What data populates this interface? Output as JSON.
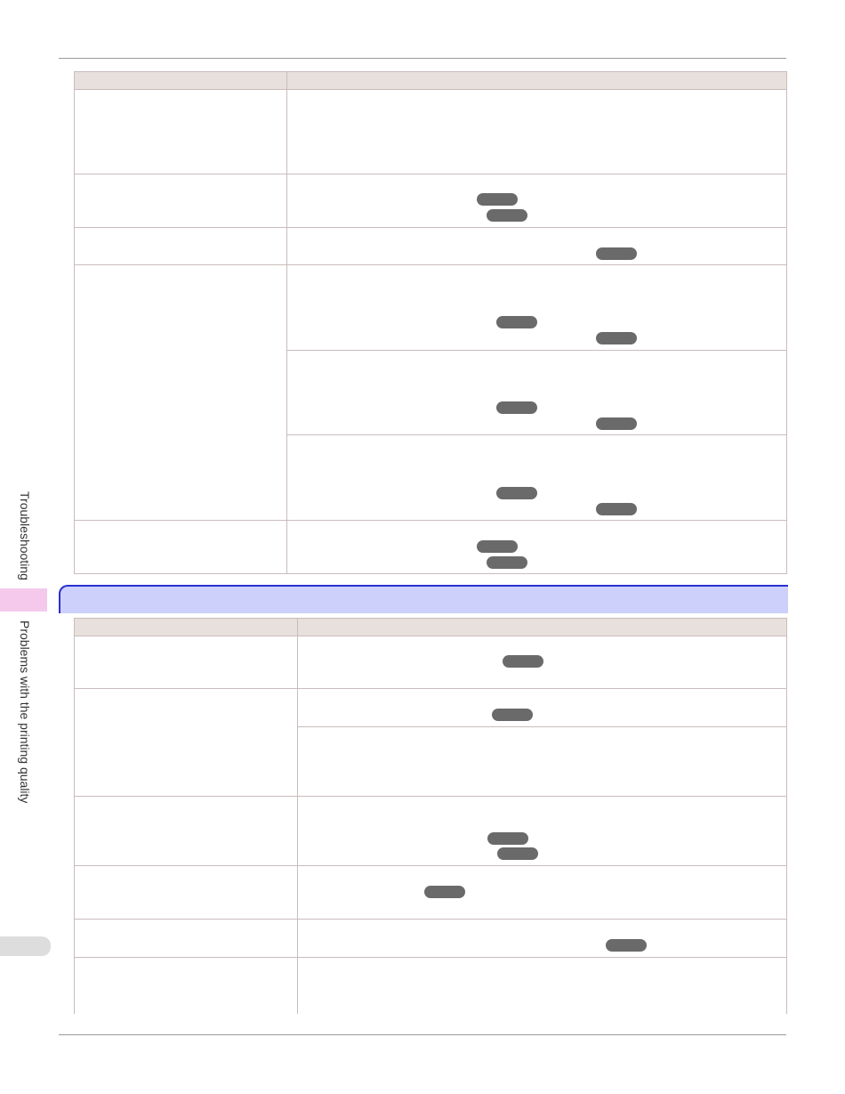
{
  "sidebar": {
    "section_label": "Troubleshooting",
    "chapter_label": "Problems with the printing quality"
  }
}
